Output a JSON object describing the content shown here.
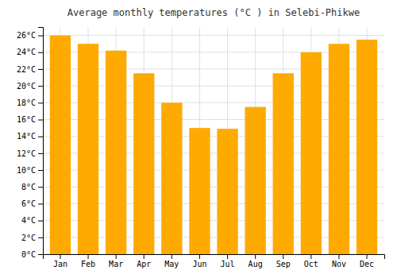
{
  "chart_data": {
    "type": "bar",
    "title": "Average monthly temperatures (°C ) in Selebi-Phikwe",
    "categories": [
      "Jan",
      "Feb",
      "Mar",
      "Apr",
      "May",
      "Jun",
      "Jul",
      "Aug",
      "Sep",
      "Oct",
      "Nov",
      "Dec"
    ],
    "values": [
      26,
      25,
      24.2,
      21.5,
      18,
      15,
      14.9,
      17.5,
      21.5,
      24,
      25,
      25.5
    ],
    "color": "#FFAA00",
    "ylim": [
      0,
      27
    ],
    "yticks": [
      {
        "value": 0,
        "label": "0°C"
      },
      {
        "value": 2,
        "label": "2°C"
      },
      {
        "value": 4,
        "label": "4°C"
      },
      {
        "value": 6,
        "label": "6°C"
      },
      {
        "value": 8,
        "label": "8°C"
      },
      {
        "value": 10,
        "label": "10°C"
      },
      {
        "value": 12,
        "label": "12°C"
      },
      {
        "value": 14,
        "label": "14°C"
      },
      {
        "value": 16,
        "label": "16°C"
      },
      {
        "value": 18,
        "label": "18°C"
      },
      {
        "value": 20,
        "label": "20°C"
      },
      {
        "value": 22,
        "label": "22°C"
      },
      {
        "value": 24,
        "label": "24°C"
      },
      {
        "value": 26,
        "label": "26°C"
      }
    ],
    "grid": true
  }
}
